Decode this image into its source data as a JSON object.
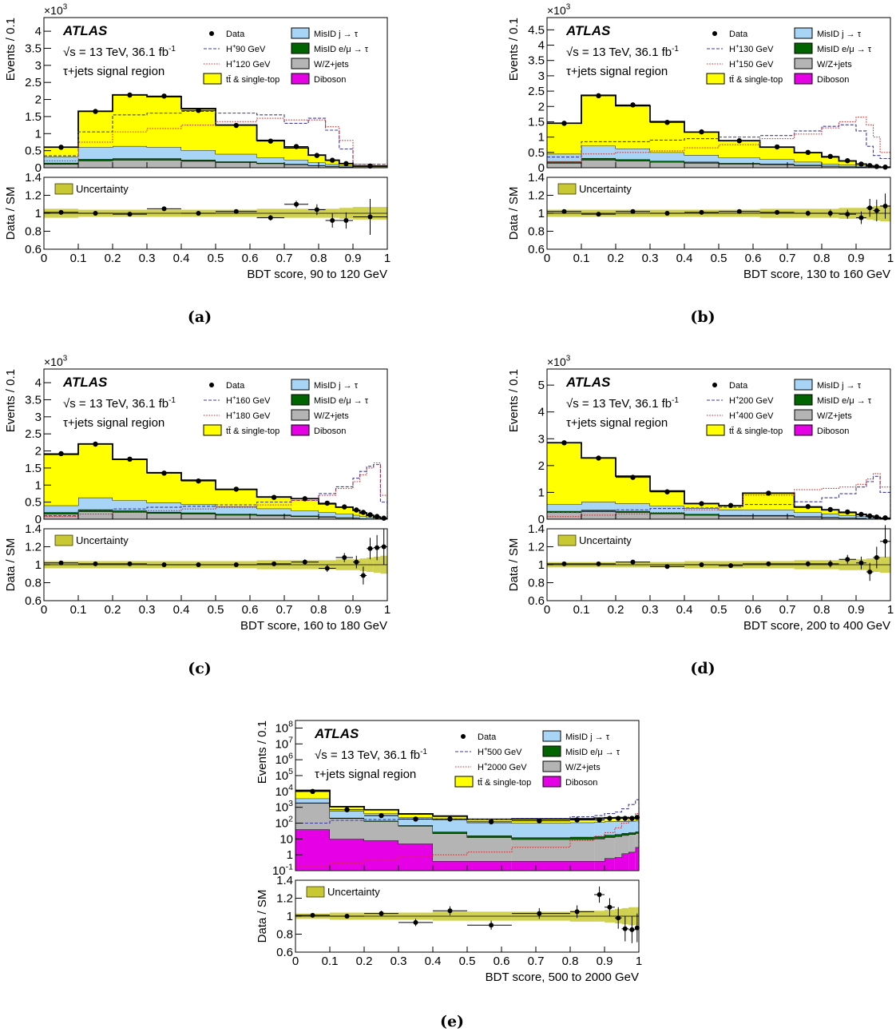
{
  "common": {
    "atlas": "ATLAS",
    "sqrt_s": "s",
    "energy": " = 13 TeV, 36.1 fb",
    "lumi_exp": "-1",
    "region": "τ+jets signal region",
    "y_upper_label": "Events / 0.1",
    "y_lower_label": "Data / SM",
    "uncertainty_label": "Uncertainty",
    "ratio_ticks": [
      "0.6",
      "0.8",
      "1",
      "1.2",
      "1.4"
    ],
    "x_ticks": [
      "0",
      "0.1",
      "0.2",
      "0.3",
      "0.4",
      "0.5",
      "0.6",
      "0.7",
      "0.8",
      "0.9",
      "1"
    ],
    "legend_fixed": {
      "data": "Data",
      "misid_j": "MisID j → τ",
      "misid_e": "MisID e/μ → τ",
      "wz": "W/Z+jets",
      "ttbar": "tt̄ & single-top",
      "diboson": "Diboson"
    },
    "colors": {
      "ttbar": "#ffff00",
      "misid_j": "#a8d4f5",
      "misid_e": "#006400",
      "wz": "#b4b4b4",
      "diboson": "#e600e6",
      "sig1": "#3a3aa0",
      "sig2": "#d83030",
      "uncertainty": "#c8c832"
    }
  },
  "captions": [
    "(a)",
    "(b)",
    "(c)",
    "(d)",
    "(e)"
  ],
  "chart_data": [
    {
      "type": "bar",
      "panel": "a",
      "xlabel": "BDT score, 90 to 120 GeV",
      "multiplier": "×10",
      "multiplier_exp": "3",
      "y_ticks": [
        "0",
        "0.5",
        "1",
        "1.5",
        "2",
        "2.5",
        "3",
        "3.5",
        "4"
      ],
      "ylim": [
        0,
        4.4
      ],
      "signal_labels": [
        "H",
        "90 GeV",
        "H",
        "120 GeV"
      ],
      "edges": [
        0,
        0.1,
        0.2,
        0.3,
        0.4,
        0.5,
        0.62,
        0.7,
        0.77,
        0.82,
        0.86,
        0.9,
        1.0
      ],
      "stack": {
        "diboson": [
          0.003,
          0.004,
          0.004,
          0.004,
          0.003,
          0.003,
          0.002,
          0.002,
          0.001,
          0.001,
          0.001,
          0.0
        ],
        "wz": [
          0.1,
          0.2,
          0.22,
          0.22,
          0.19,
          0.15,
          0.12,
          0.09,
          0.06,
          0.04,
          0.02,
          0.01
        ],
        "misid_e": [
          0.04,
          0.05,
          0.05,
          0.05,
          0.04,
          0.03,
          0.02,
          0.02,
          0.01,
          0.01,
          0.01,
          0.0
        ],
        "misid_j": [
          0.18,
          0.35,
          0.36,
          0.33,
          0.28,
          0.22,
          0.16,
          0.12,
          0.08,
          0.05,
          0.03,
          0.02
        ],
        "ttbar": [
          0.28,
          1.05,
          1.5,
          1.48,
          1.22,
          0.85,
          0.5,
          0.35,
          0.22,
          0.12,
          0.06,
          0.02
        ]
      },
      "signals": [
        [
          0.35,
          1.05,
          1.55,
          1.6,
          1.65,
          1.6,
          1.55,
          1.3,
          1.45,
          1.1,
          0.55,
          0.1
        ],
        [
          0.2,
          0.75,
          1.05,
          1.15,
          1.25,
          1.35,
          1.45,
          1.4,
          1.4,
          1.2,
          0.8,
          0.1
        ]
      ],
      "data_x": [
        0.05,
        0.15,
        0.25,
        0.35,
        0.45,
        0.56,
        0.66,
        0.735,
        0.795,
        0.84,
        0.88,
        0.95
      ],
      "data_y": [
        0.6,
        1.65,
        2.13,
        2.1,
        1.68,
        1.24,
        0.78,
        0.62,
        0.36,
        0.22,
        0.12,
        0.05
      ],
      "ratio": [
        1.01,
        1.0,
        0.99,
        1.05,
        1.0,
        1.02,
        0.95,
        1.1,
        1.04,
        0.92,
        0.92,
        0.96
      ],
      "ratio_err": [
        0.02,
        0.015,
        0.012,
        0.015,
        0.015,
        0.02,
        0.03,
        0.04,
        0.06,
        0.08,
        0.09,
        0.2
      ],
      "band": [
        0.05,
        0.04,
        0.04,
        0.04,
        0.04,
        0.04,
        0.05,
        0.05,
        0.05,
        0.05,
        0.06,
        0.07
      ]
    },
    {
      "type": "bar",
      "panel": "b",
      "xlabel": "BDT score, 130 to 160 GeV",
      "multiplier": "×10",
      "multiplier_exp": "3",
      "y_ticks": [
        "0",
        "0.5",
        "1",
        "1.5",
        "2",
        "2.5",
        "3",
        "3.5",
        "4",
        "4.5"
      ],
      "ylim": [
        0,
        4.9
      ],
      "signal_labels": [
        "H",
        "130 GeV",
        "H",
        "150 GeV"
      ],
      "edges": [
        0,
        0.1,
        0.2,
        0.3,
        0.4,
        0.5,
        0.62,
        0.72,
        0.8,
        0.85,
        0.9,
        0.93,
        0.95,
        0.97,
        1.0
      ],
      "stack": {
        "diboson": [
          0.003,
          0.004,
          0.004,
          0.003,
          0.003,
          0.003,
          0.002,
          0.002,
          0.001,
          0.001,
          0.001,
          0.0,
          0.0,
          0.0
        ],
        "wz": [
          0.15,
          0.25,
          0.22,
          0.18,
          0.15,
          0.12,
          0.1,
          0.07,
          0.05,
          0.03,
          0.02,
          0.01,
          0.01,
          0.0
        ],
        "misid_e": [
          0.05,
          0.06,
          0.05,
          0.04,
          0.04,
          0.03,
          0.03,
          0.02,
          0.01,
          0.01,
          0.01,
          0.0,
          0.0,
          0.0
        ],
        "misid_j": [
          0.25,
          0.4,
          0.35,
          0.28,
          0.22,
          0.18,
          0.14,
          0.1,
          0.07,
          0.05,
          0.03,
          0.02,
          0.01,
          0.01
        ],
        "ttbar": [
          1.0,
          1.65,
          1.4,
          1.0,
          0.75,
          0.55,
          0.4,
          0.3,
          0.22,
          0.13,
          0.06,
          0.03,
          0.02,
          0.01
        ]
      },
      "signals": [
        [
          0.35,
          0.85,
          0.85,
          0.9,
          0.95,
          1.0,
          1.05,
          1.2,
          1.35,
          1.4,
          1.2,
          0.7,
          0.4,
          0.3
        ],
        [
          0.2,
          0.45,
          0.5,
          0.55,
          0.65,
          0.75,
          0.95,
          1.1,
          1.3,
          1.5,
          1.65,
          1.4,
          1.0,
          0.5
        ]
      ],
      "data_x": [
        0.05,
        0.15,
        0.25,
        0.35,
        0.45,
        0.56,
        0.67,
        0.76,
        0.825,
        0.875,
        0.915,
        0.94,
        0.96,
        0.985
      ],
      "data_y": [
        1.45,
        2.35,
        2.05,
        1.48,
        1.17,
        0.88,
        0.68,
        0.5,
        0.37,
        0.23,
        0.12,
        0.07,
        0.04,
        0.02
      ],
      "ratio": [
        1.02,
        0.99,
        1.02,
        1.0,
        1.01,
        1.02,
        1.01,
        1.0,
        1.0,
        0.99,
        0.95,
        1.06,
        1.03,
        1.08
      ],
      "ratio_err": [
        0.01,
        0.01,
        0.01,
        0.012,
        0.015,
        0.02,
        0.02,
        0.03,
        0.04,
        0.05,
        0.07,
        0.1,
        0.12,
        0.14
      ],
      "band": [
        0.04,
        0.04,
        0.04,
        0.04,
        0.04,
        0.04,
        0.05,
        0.05,
        0.05,
        0.06,
        0.06,
        0.07,
        0.08,
        0.09
      ]
    },
    {
      "type": "bar",
      "panel": "c",
      "xlabel": "BDT score, 160 to 180 GeV",
      "multiplier": "×10",
      "multiplier_exp": "3",
      "y_ticks": [
        "0",
        "0.5",
        "1",
        "1.5",
        "2",
        "2.5",
        "3",
        "3.5",
        "4"
      ],
      "ylim": [
        0,
        4.4
      ],
      "signal_labels": [
        "H",
        "160 GeV",
        "H",
        "180 GeV"
      ],
      "edges": [
        0,
        0.1,
        0.2,
        0.3,
        0.4,
        0.5,
        0.62,
        0.72,
        0.8,
        0.85,
        0.9,
        0.92,
        0.94,
        0.96,
        0.98,
        1.0
      ],
      "stack": {
        "diboson": [
          0.003,
          0.004,
          0.004,
          0.003,
          0.003,
          0.003,
          0.002,
          0.002,
          0.001,
          0.001,
          0.001,
          0.0,
          0.0,
          0.0,
          0.0
        ],
        "wz": [
          0.15,
          0.22,
          0.2,
          0.17,
          0.15,
          0.12,
          0.1,
          0.08,
          0.06,
          0.04,
          0.03,
          0.02,
          0.01,
          0.01,
          0.0
        ],
        "misid_e": [
          0.05,
          0.06,
          0.05,
          0.04,
          0.04,
          0.03,
          0.03,
          0.02,
          0.02,
          0.01,
          0.01,
          0.0,
          0.0,
          0.0,
          0.0
        ],
        "misid_j": [
          0.2,
          0.35,
          0.3,
          0.27,
          0.25,
          0.22,
          0.18,
          0.15,
          0.12,
          0.1,
          0.08,
          0.06,
          0.04,
          0.02,
          0.01
        ],
        "ttbar": [
          1.5,
          1.57,
          1.2,
          0.88,
          0.7,
          0.5,
          0.34,
          0.35,
          0.25,
          0.2,
          0.14,
          0.1,
          0.06,
          0.03,
          0.01
        ]
      },
      "signals": [
        [
          0.1,
          0.25,
          0.3,
          0.35,
          0.38,
          0.42,
          0.5,
          0.55,
          0.75,
          0.95,
          1.2,
          1.4,
          1.55,
          1.6,
          0.5
        ],
        [
          0.08,
          0.15,
          0.2,
          0.25,
          0.3,
          0.35,
          0.42,
          0.55,
          0.7,
          0.9,
          1.1,
          1.3,
          1.5,
          1.65,
          0.7
        ]
      ],
      "data_x": [
        0.05,
        0.15,
        0.25,
        0.35,
        0.45,
        0.56,
        0.67,
        0.76,
        0.825,
        0.875,
        0.91,
        0.93,
        0.95,
        0.97,
        0.99
      ],
      "data_y": [
        1.92,
        2.2,
        1.76,
        1.35,
        1.12,
        0.88,
        0.64,
        0.6,
        0.47,
        0.36,
        0.27,
        0.2,
        0.13,
        0.08,
        0.03
      ],
      "ratio": [
        1.02,
        1.01,
        1.01,
        1.0,
        1.0,
        1.0,
        1.01,
        1.03,
        0.96,
        1.08,
        1.03,
        0.88,
        1.18,
        1.19,
        1.2
      ],
      "ratio_err": [
        0.01,
        0.01,
        0.01,
        0.012,
        0.015,
        0.02,
        0.02,
        0.03,
        0.04,
        0.05,
        0.07,
        0.1,
        0.12,
        0.14,
        0.2
      ],
      "band": [
        0.04,
        0.04,
        0.04,
        0.04,
        0.04,
        0.04,
        0.05,
        0.05,
        0.05,
        0.06,
        0.06,
        0.07,
        0.08,
        0.09,
        0.1
      ]
    },
    {
      "type": "bar",
      "panel": "d",
      "xlabel": "BDT score, 200 to 400  GeV",
      "multiplier": "×10",
      "multiplier_exp": "3",
      "y_ticks": [
        "0",
        "1",
        "2",
        "3",
        "4",
        "5"
      ],
      "ylim": [
        0,
        5.6
      ],
      "signal_labels": [
        "H",
        "200 GeV",
        "H",
        "400 GeV"
      ],
      "edges": [
        0,
        0.1,
        0.2,
        0.3,
        0.4,
        0.5,
        0.57,
        0.72,
        0.8,
        0.85,
        0.9,
        0.93,
        0.95,
        0.97,
        1.0
      ],
      "stack": {
        "diboson": [
          0.003,
          0.004,
          0.004,
          0.003,
          0.003,
          0.003,
          0.002,
          0.002,
          0.001,
          0.001,
          0.001,
          0.0,
          0.0,
          0.0
        ],
        "wz": [
          0.25,
          0.28,
          0.25,
          0.2,
          0.15,
          0.12,
          0.12,
          0.08,
          0.06,
          0.04,
          0.03,
          0.02,
          0.01,
          0.0
        ],
        "misid_e": [
          0.05,
          0.06,
          0.05,
          0.04,
          0.04,
          0.03,
          0.03,
          0.02,
          0.02,
          0.01,
          0.01,
          0.0,
          0.0,
          0.0
        ],
        "misid_j": [
          0.25,
          0.3,
          0.28,
          0.25,
          0.22,
          0.2,
          0.2,
          0.15,
          0.12,
          0.1,
          0.08,
          0.06,
          0.04,
          0.02
        ],
        "ttbar": [
          2.3,
          1.64,
          1.02,
          0.56,
          0.17,
          0.15,
          0.62,
          0.2,
          0.15,
          0.1,
          0.06,
          0.04,
          0.02,
          0.01
        ]
      },
      "signals": [
        [
          0.25,
          0.3,
          0.35,
          0.4,
          0.42,
          0.45,
          0.55,
          0.65,
          0.8,
          0.95,
          1.2,
          1.4,
          1.6,
          1.0
        ],
        [
          0.1,
          0.15,
          0.2,
          0.25,
          0.35,
          0.5,
          0.9,
          1.1,
          1.15,
          1.2,
          1.3,
          1.5,
          1.7,
          1.2
        ]
      ],
      "data_x": [
        0.05,
        0.15,
        0.25,
        0.35,
        0.45,
        0.535,
        0.645,
        0.76,
        0.825,
        0.875,
        0.915,
        0.94,
        0.96,
        0.985
      ],
      "data_y": [
        2.85,
        2.28,
        1.56,
        1.02,
        0.58,
        0.51,
        0.97,
        0.47,
        0.36,
        0.27,
        0.18,
        0.12,
        0.08,
        0.05
      ],
      "ratio": [
        1.01,
        1.01,
        1.03,
        0.98,
        1.0,
        0.99,
        1.01,
        1.01,
        1.01,
        1.06,
        1.02,
        0.92,
        1.08,
        1.26
      ],
      "ratio_err": [
        0.01,
        0.01,
        0.012,
        0.015,
        0.02,
        0.02,
        0.02,
        0.03,
        0.04,
        0.05,
        0.07,
        0.1,
        0.12,
        0.18
      ],
      "band": [
        0.03,
        0.03,
        0.03,
        0.03,
        0.04,
        0.04,
        0.04,
        0.05,
        0.05,
        0.06,
        0.06,
        0.07,
        0.08,
        0.09
      ]
    },
    {
      "type": "bar",
      "panel": "e",
      "log_scale": true,
      "xlabel": "BDT score, 500 to 2000 GeV",
      "multiplier": "",
      "multiplier_exp": "",
      "y_ticks": [
        "10-1",
        "1",
        "10",
        "102",
        "103",
        "104",
        "105",
        "106",
        "107",
        "108"
      ],
      "ylim": [
        0.1,
        300000000
      ],
      "signal_labels": [
        "H",
        "500 GeV",
        "H",
        "2000 GeV"
      ],
      "edges": [
        0,
        0.1,
        0.2,
        0.3,
        0.4,
        0.5,
        0.63,
        0.8,
        0.87,
        0.9,
        0.93,
        0.95,
        0.97,
        0.99,
        1.0
      ],
      "stack": {
        "diboson": [
          40,
          10,
          8,
          5,
          0.4,
          0.4,
          0.4,
          0.4,
          0.4,
          0.6,
          0.7,
          1.2,
          1.5,
          3
        ],
        "wz": [
          1800,
          190,
          120,
          60,
          22,
          12,
          9,
          9,
          10,
          12,
          14,
          16,
          18,
          20
        ],
        "misid_e": [
          120,
          15,
          12,
          8,
          6,
          4,
          3,
          4,
          4,
          5,
          5,
          6,
          6,
          6
        ],
        "misid_j": [
          1600,
          380,
          260,
          160,
          140,
          90,
          90,
          95,
          100,
          110,
          110,
          110,
          110,
          110
        ],
        "ttbar": [
          8000,
          500,
          300,
          150,
          110,
          70,
          80,
          80,
          90,
          90,
          90,
          90,
          80,
          70
        ]
      },
      "signals": [
        [
          100,
          150,
          170,
          180,
          180,
          180,
          200,
          250,
          300,
          400,
          500,
          800,
          1500,
          3000
        ],
        [
          0.2,
          0.3,
          0.5,
          0.8,
          1.0,
          1.5,
          3,
          8,
          15,
          25,
          50,
          100,
          200,
          400
        ]
      ],
      "data_x": [
        0.05,
        0.15,
        0.25,
        0.35,
        0.45,
        0.57,
        0.71,
        0.82,
        0.885,
        0.915,
        0.94,
        0.96,
        0.98,
        0.995
      ],
      "data_y": [
        10000,
        700,
        300,
        180,
        180,
        120,
        140,
        160,
        160,
        200,
        200,
        200,
        200,
        230
      ],
      "ratio": [
        1.01,
        1.0,
        1.03,
        0.93,
        1.06,
        0.9,
        1.03,
        1.05,
        1.24,
        1.1,
        0.98,
        0.86,
        0.85,
        0.87
      ],
      "ratio_err": [
        0.01,
        0.02,
        0.03,
        0.04,
        0.05,
        0.05,
        0.06,
        0.07,
        0.09,
        0.1,
        0.12,
        0.14,
        0.15,
        0.16
      ],
      "band": [
        0.03,
        0.04,
        0.04,
        0.04,
        0.05,
        0.05,
        0.05,
        0.06,
        0.06,
        0.07,
        0.08,
        0.09,
        0.1,
        0.1
      ]
    }
  ]
}
